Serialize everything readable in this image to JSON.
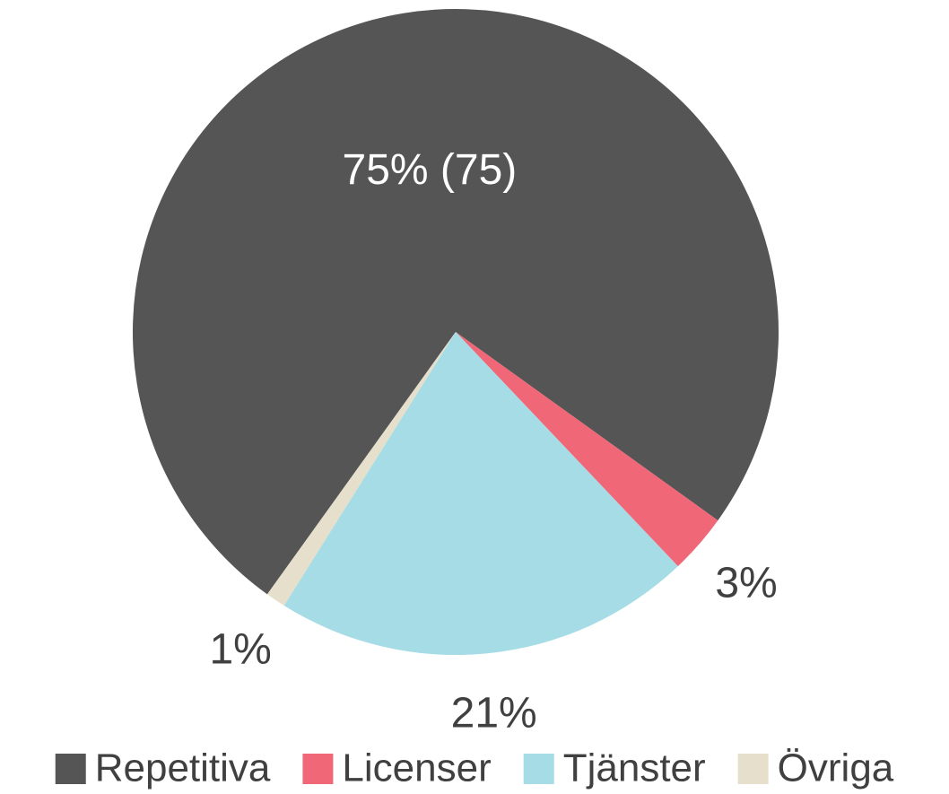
{
  "chart_data": {
    "type": "pie",
    "categories": [
      "Repetitiva",
      "Licenser",
      "Tjänster",
      "Övriga"
    ],
    "values": [
      75,
      3,
      21,
      1
    ],
    "value_labels": [
      "75% (75)",
      "3%",
      "21%",
      "1%"
    ],
    "colors": [
      "#555555",
      "#f06878",
      "#a5dce5",
      "#e5dfcc"
    ],
    "legend": "bottom"
  }
}
